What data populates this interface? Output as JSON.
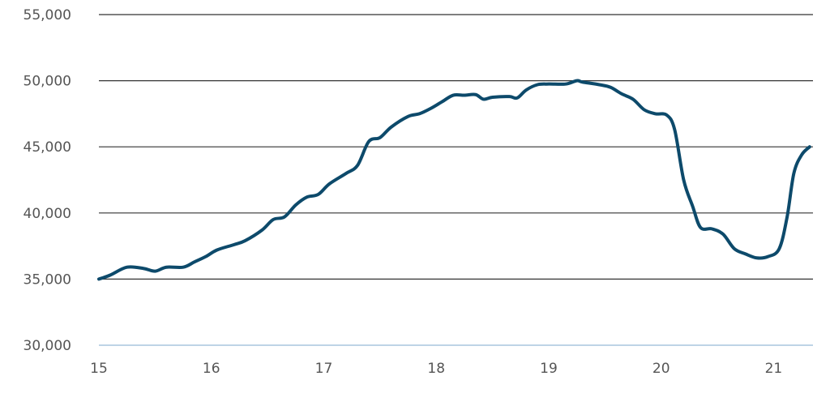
{
  "chart_data": {
    "type": "line",
    "title": "",
    "xlabel": "",
    "ylabel": "",
    "xlim": [
      15,
      21.35
    ],
    "ylim": [
      30000,
      55000
    ],
    "x_ticks": [
      15,
      16,
      17,
      18,
      19,
      20,
      21
    ],
    "x_tick_labels": [
      "15",
      "16",
      "17",
      "18",
      "19",
      "20",
      "21"
    ],
    "y_ticks": [
      30000,
      35000,
      40000,
      45000,
      50000,
      55000
    ],
    "y_tick_labels": [
      "30,000",
      "35,000",
      "40,000",
      "45,000",
      "50,000",
      "55,000"
    ],
    "grid": "horizontal",
    "legend": "none",
    "colors": {
      "line": "#0d4a6b",
      "grid": "#333333",
      "baseline": "#a9c6de",
      "tick_text": "#555555"
    },
    "series": [
      {
        "x": [
          15.0,
          15.1,
          15.25,
          15.4,
          15.5,
          15.6,
          15.75,
          15.85,
          15.95,
          16.05,
          16.2,
          16.3,
          16.45,
          16.55,
          16.65,
          16.75,
          16.85,
          16.95,
          17.05,
          17.2,
          17.3,
          17.4,
          17.5,
          17.6,
          17.75,
          17.85,
          17.95,
          18.05,
          18.15,
          18.25,
          18.35,
          18.42,
          18.5,
          18.65,
          18.72,
          18.8,
          18.9,
          19.0,
          19.15,
          19.25,
          19.3,
          19.45,
          19.55,
          19.65,
          19.75,
          19.85,
          19.95,
          20.05,
          20.12,
          20.2,
          20.28,
          20.35,
          20.45,
          20.55,
          20.65,
          20.75,
          20.85,
          20.95,
          21.05,
          21.12,
          21.18,
          21.25,
          21.32
        ],
        "y": [
          35000,
          35300,
          35900,
          35800,
          35600,
          35900,
          35900,
          36300,
          36700,
          37200,
          37600,
          37900,
          38700,
          39500,
          39700,
          40600,
          41200,
          41400,
          42200,
          43000,
          43600,
          45400,
          45700,
          46500,
          47300,
          47500,
          47900,
          48400,
          48900,
          48900,
          48950,
          48600,
          48750,
          48800,
          48700,
          49300,
          49700,
          49750,
          49750,
          50000,
          49900,
          49700,
          49500,
          49000,
          48600,
          47800,
          47500,
          47400,
          46300,
          42500,
          40500,
          38900,
          38800,
          38400,
          37300,
          36900,
          36600,
          36700,
          37300,
          39700,
          43000,
          44400,
          45000
        ]
      }
    ]
  }
}
